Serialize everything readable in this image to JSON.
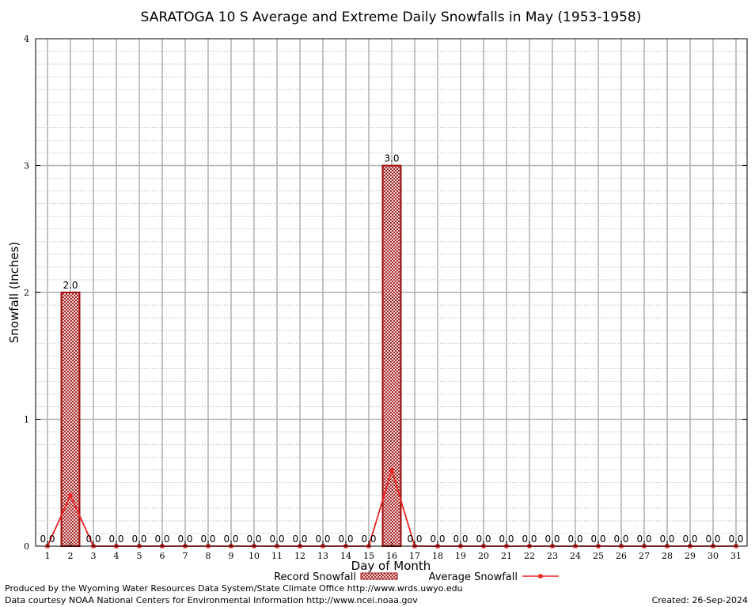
{
  "chart_data": {
    "type": "bar",
    "title": "SARATOGA 10 S Average and Extreme Daily Snowfalls in May (1953-1958)",
    "xlabel": "Day of Month",
    "ylabel": "Snowfall (Inches)",
    "ylim": [
      0,
      4
    ],
    "yticks": [
      "0",
      "1",
      "2",
      "3",
      "4"
    ],
    "categories": [
      "1",
      "2",
      "3",
      "4",
      "5",
      "6",
      "7",
      "8",
      "9",
      "10",
      "11",
      "12",
      "13",
      "14",
      "15",
      "16",
      "17",
      "18",
      "19",
      "20",
      "21",
      "22",
      "23",
      "24",
      "25",
      "26",
      "27",
      "28",
      "29",
      "30",
      "31"
    ],
    "grid": true,
    "legend_position": "bottom",
    "series": [
      {
        "name": "Record Snowfall",
        "kind": "bar",
        "color": "#cc0000",
        "values": [
          0,
          2,
          0,
          0,
          0,
          0,
          0,
          0,
          0,
          0,
          0,
          0,
          0,
          0,
          0,
          3,
          0,
          0,
          0,
          0,
          0,
          0,
          0,
          0,
          0,
          0,
          0,
          0,
          0,
          0,
          0
        ],
        "labels": [
          "0.0",
          "2.0",
          "0.0",
          "0.0",
          "0.0",
          "0.0",
          "0.0",
          "0.0",
          "0.0",
          "0.0",
          "0.0",
          "0.0",
          "0.0",
          "0.0",
          "0.0",
          "3.0",
          "0.0",
          "0.0",
          "0.0",
          "0.0",
          "0.0",
          "0.0",
          "0.0",
          "0.0",
          "0.0",
          "0.0",
          "0.0",
          "0.0",
          "0.0",
          "0.0",
          "0.0"
        ]
      },
      {
        "name": "Average Snowfall",
        "kind": "line",
        "color": "#ee2222",
        "values": [
          0,
          0.4,
          0,
          0,
          0,
          0,
          0,
          0,
          0,
          0,
          0,
          0,
          0,
          0,
          0,
          0.6,
          0,
          0,
          0,
          0,
          0,
          0,
          0,
          0,
          0,
          0,
          0,
          0,
          0,
          0,
          0
        ]
      }
    ]
  },
  "footer": {
    "produced_by": "Produced by the Wyoming Water Resources Data System/State Climate Office http://www.wrds.uwyo.edu",
    "courtesy": "Data courtesy NOAA National Centers for Environmental Information http://www.ncei.noaa.gov",
    "created": "Created:  26-Sep-2024"
  }
}
